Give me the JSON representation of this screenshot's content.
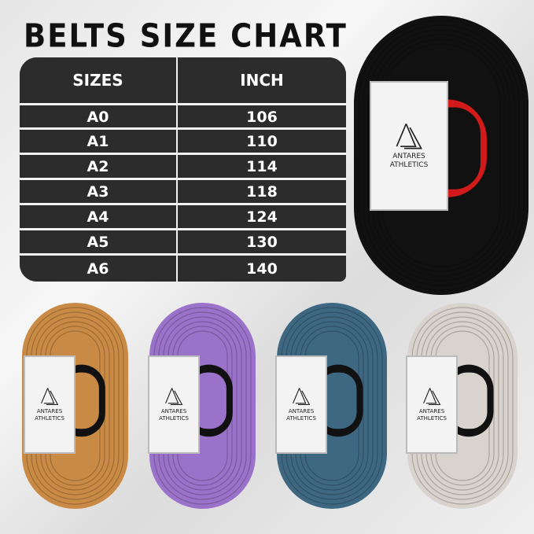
{
  "title": "BELTS SIZE CHART",
  "table": {
    "headers": [
      "SIZES",
      "INCH"
    ],
    "rows": [
      [
        "A0",
        "106"
      ],
      [
        "A1",
        "110"
      ],
      [
        "A2",
        "114"
      ],
      [
        "A3",
        "118"
      ],
      [
        "A4",
        "124"
      ],
      [
        "A5",
        "130"
      ],
      [
        "A6",
        "140"
      ]
    ]
  },
  "brand": {
    "line1": "ANTARES",
    "line2": "ATHLETICS"
  },
  "belts": [
    {
      "color": "black",
      "hex": "#111111",
      "inner": "#d21a1a"
    },
    {
      "color": "orange",
      "hex": "#c98a45",
      "inner": "#111111"
    },
    {
      "color": "purple",
      "hex": "#9a72c9",
      "inner": "#111111"
    },
    {
      "color": "blue",
      "hex": "#3e6781",
      "inner": "#111111"
    },
    {
      "color": "white",
      "hex": "#d8d3cd",
      "inner": "#111111"
    }
  ]
}
